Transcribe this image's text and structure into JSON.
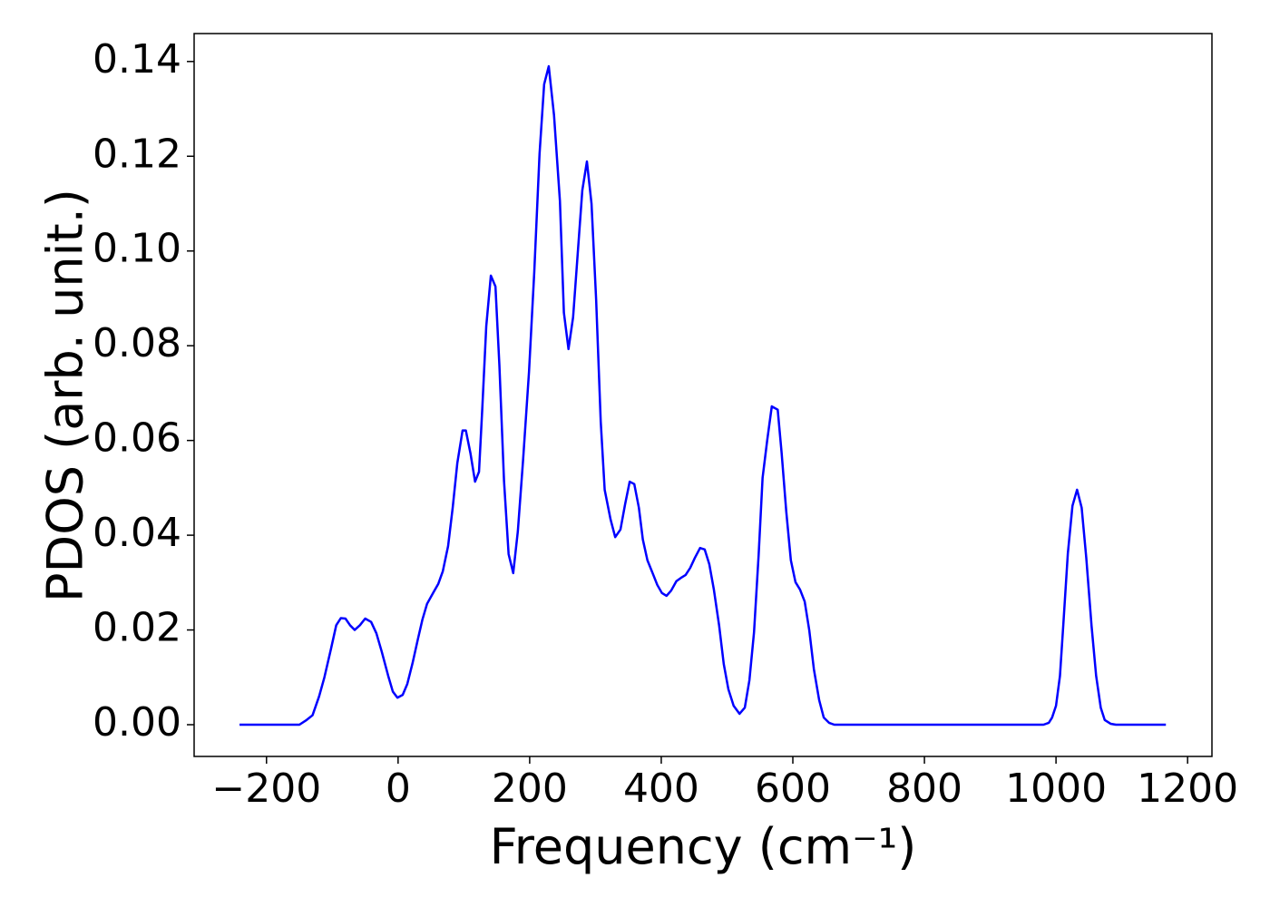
{
  "chart_data": {
    "type": "line",
    "xlabel": "Frequency (cm⁻¹)",
    "ylabel": "PDOS (arb. unit.)",
    "xlim": [
      -310,
      1237
    ],
    "ylim": [
      -0.0067,
      0.1459
    ],
    "xticks": [
      {
        "value": -200,
        "label": "−200"
      },
      0,
      200,
      400,
      600,
      800,
      1000,
      1200
    ],
    "yticks": [
      {
        "value": 0,
        "label": "0.00"
      },
      {
        "value": 0.02,
        "label": "0.02"
      },
      {
        "value": 0.04,
        "label": "0.04"
      },
      {
        "value": 0.06,
        "label": "0.06"
      },
      {
        "value": 0.08,
        "label": "0.08"
      },
      {
        "value": 0.1,
        "label": "0.10"
      },
      {
        "value": 0.12,
        "label": "0.12"
      },
      {
        "value": 0.14,
        "label": "0.14"
      }
    ],
    "series": [
      {
        "color": "#0000ff",
        "x": [
          -241,
          -150,
          -139,
          -130,
          -120,
          -112,
          -102,
          -94,
          -87,
          -80,
          -73,
          -66,
          -58,
          -50,
          -41,
          -33,
          -25,
          -15,
          -8,
          -1,
          7,
          14,
          22,
          30,
          37,
          44,
          54,
          61,
          68,
          76,
          83,
          90,
          98,
          103,
          110,
          117,
          123,
          128,
          134,
          141,
          148,
          154,
          161,
          168,
          175,
          182,
          190,
          199,
          207,
          215,
          222,
          229,
          237,
          246,
          252,
          259,
          266,
          273,
          280,
          287,
          294,
          301,
          308,
          314,
          323,
          330,
          338,
          345,
          352,
          359,
          366,
          372,
          379,
          388,
          394,
          401,
          408,
          415,
          423,
          430,
          437,
          444,
          451,
          459,
          466,
          473,
          480,
          488,
          495,
          502,
          510,
          519,
          527,
          534,
          541,
          548,
          554,
          561,
          568,
          577,
          583,
          590,
          597,
          604,
          611,
          618,
          625,
          632,
          640,
          647,
          655,
          663,
          981,
          989,
          994,
          1000,
          1006,
          1011,
          1018,
          1025,
          1032,
          1039,
          1046,
          1054,
          1061,
          1068,
          1074,
          1083,
          1091,
          1167
        ],
        "values": [
          0,
          0,
          0.001,
          0.002,
          0.006,
          0.01,
          0.016,
          0.021,
          0.0225,
          0.0224,
          0.021,
          0.02,
          0.021,
          0.0224,
          0.0217,
          0.0193,
          0.0155,
          0.0103,
          0.007,
          0.0057,
          0.0063,
          0.0086,
          0.013,
          0.018,
          0.0222,
          0.0255,
          0.028,
          0.0297,
          0.0324,
          0.0377,
          0.0458,
          0.0552,
          0.0621,
          0.0621,
          0.0573,
          0.0513,
          0.0534,
          0.0668,
          0.0841,
          0.0948,
          0.0925,
          0.0758,
          0.0515,
          0.036,
          0.032,
          0.0408,
          0.0559,
          0.0745,
          0.0956,
          0.1205,
          0.1352,
          0.139,
          0.1287,
          0.1105,
          0.087,
          0.0793,
          0.086,
          0.0994,
          0.1128,
          0.1189,
          0.11,
          0.0898,
          0.064,
          0.0496,
          0.0433,
          0.0396,
          0.0412,
          0.0465,
          0.0513,
          0.0508,
          0.0458,
          0.0391,
          0.0347,
          0.0316,
          0.0295,
          0.0278,
          0.0272,
          0.0283,
          0.0303,
          0.031,
          0.0316,
          0.0331,
          0.0352,
          0.0373,
          0.037,
          0.0339,
          0.0285,
          0.0209,
          0.0128,
          0.0075,
          0.004,
          0.0023,
          0.0036,
          0.0094,
          0.0195,
          0.0358,
          0.0521,
          0.06,
          0.0672,
          0.0665,
          0.0573,
          0.045,
          0.0347,
          0.0301,
          0.0285,
          0.026,
          0.0199,
          0.0117,
          0.0052,
          0.0015,
          0.0004,
          0,
          0,
          0.0004,
          0.0015,
          0.004,
          0.0103,
          0.0209,
          0.0362,
          0.0462,
          0.0496,
          0.0458,
          0.0352,
          0.0209,
          0.0103,
          0.0036,
          0.001,
          0.0002,
          0,
          0
        ]
      }
    ]
  }
}
